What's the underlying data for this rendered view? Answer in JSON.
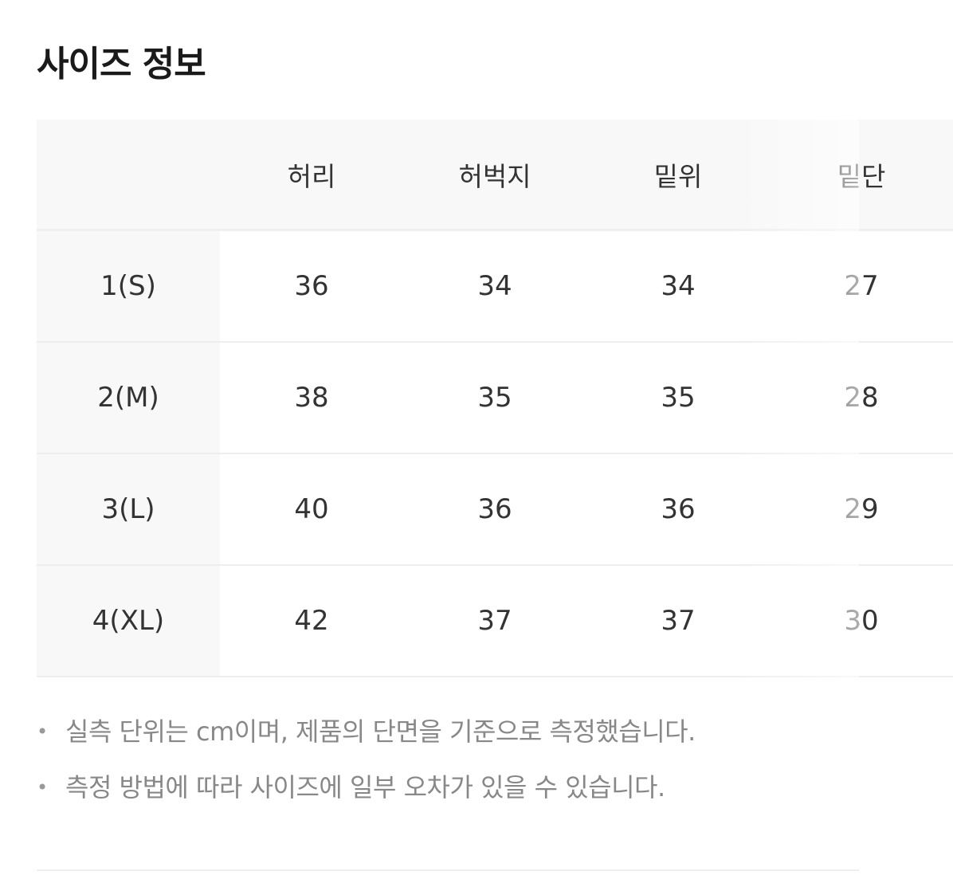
{
  "title": "사이즈 정보",
  "table": {
    "headers": [
      "",
      "허리",
      "허벅지",
      "밑위",
      "밑단"
    ],
    "rows": [
      {
        "size": "1(S)",
        "values": [
          "36",
          "34",
          "34",
          "27"
        ]
      },
      {
        "size": "2(M)",
        "values": [
          "38",
          "35",
          "35",
          "28"
        ]
      },
      {
        "size": "3(L)",
        "values": [
          "40",
          "36",
          "36",
          "29"
        ]
      },
      {
        "size": "4(XL)",
        "values": [
          "42",
          "37",
          "37",
          "30"
        ]
      }
    ]
  },
  "notes": [
    "실측 단위는 cm이며, 제품의 단면을 기준으로 측정했습니다.",
    "측정 방법에 따라 사이즈에 일부 오차가 있을 수 있습니다."
  ]
}
